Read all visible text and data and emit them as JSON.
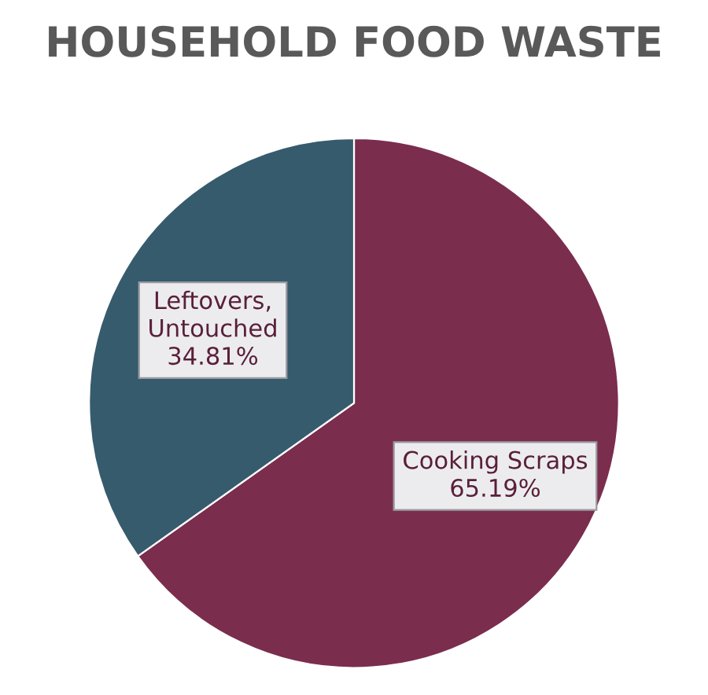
{
  "chart_data": {
    "type": "pie",
    "title": "HOUSEHOLD FOOD WASTE",
    "categories": [
      "Cooking Scraps",
      "Leftovers,\nUntouched"
    ],
    "values": [
      65.19,
      34.81
    ],
    "value_labels": [
      "65.19%",
      "34.81%"
    ],
    "colors": [
      "#7b2d4e",
      "#365b6d"
    ]
  }
}
